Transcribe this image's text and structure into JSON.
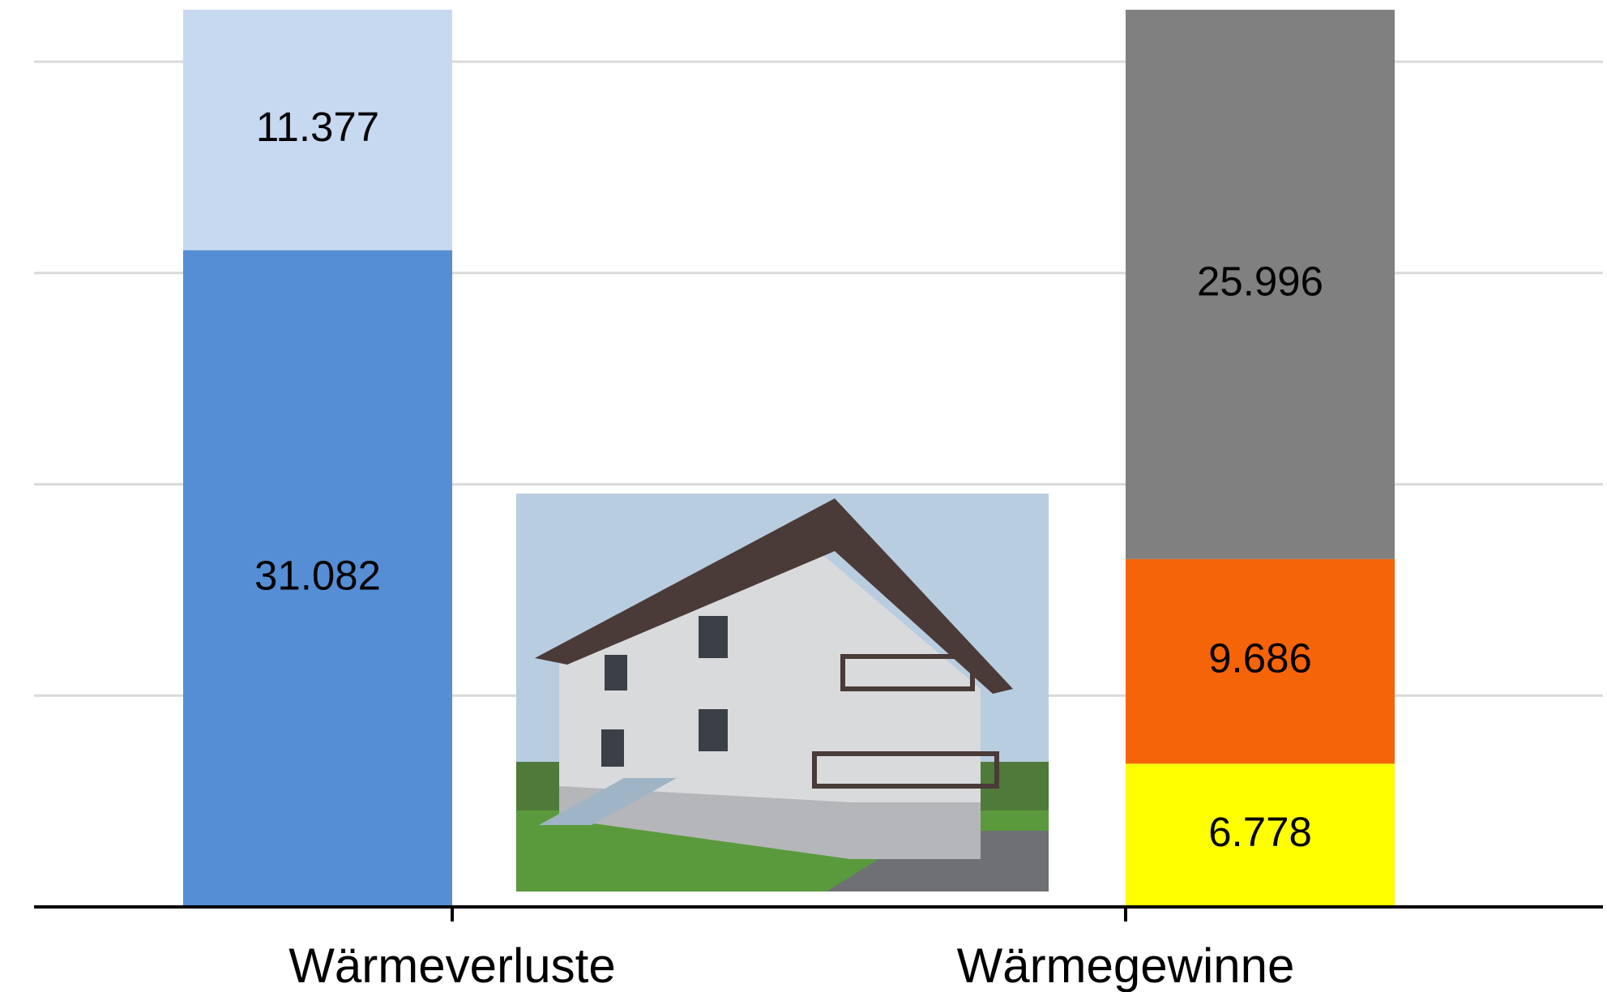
{
  "chart_data": {
    "type": "stacked_bar",
    "categories": [
      "Wärmeverluste",
      "Wärmegewinne"
    ],
    "series": [
      {
        "color": "#558ed5",
        "values": [
          31082,
          null
        ],
        "value_labels": [
          "31.082",
          null
        ]
      },
      {
        "color": "#c6d9f1",
        "values": [
          11377,
          null
        ],
        "value_labels": [
          "11.377",
          null
        ]
      },
      {
        "color": "#ffff00",
        "values": [
          null,
          6778
        ],
        "value_labels": [
          null,
          "6.778"
        ]
      },
      {
        "color": "#f66409",
        "values": [
          null,
          9686
        ],
        "value_labels": [
          null,
          "9.686"
        ]
      },
      {
        "color": "#808080",
        "values": [
          null,
          25996
        ],
        "value_labels": [
          null,
          "25.996"
        ]
      }
    ],
    "ylim": [
      0,
      42500
    ],
    "yticks": [
      10000,
      20000,
      30000,
      40000
    ],
    "grid": true
  }
}
